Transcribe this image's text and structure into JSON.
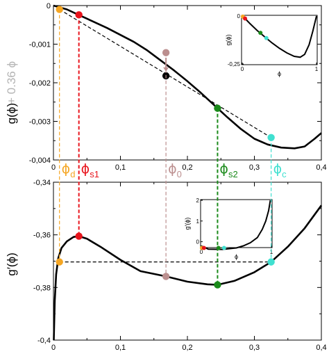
{
  "chart_data": [
    {
      "id": "top",
      "type": "line",
      "ylabel": "g(ϕ)",
      "ylabel_suffix": "+ 0.36 ϕ",
      "xlim": [
        0,
        0.4
      ],
      "ylim": [
        -0.004,
        0
      ],
      "xticks": [
        0,
        0.1,
        0.2,
        0.3,
        0.4
      ],
      "xtick_labels": [
        "0",
        "0,1",
        "0,2",
        "0,3",
        "0,4"
      ],
      "yticks": [
        0,
        -0.001,
        -0.002,
        -0.003,
        -0.004
      ],
      "ytick_labels": [
        "0",
        "-0,001",
        "-0,002",
        "-0,003",
        "-0,004"
      ],
      "series": [
        {
          "values": [
            [
              0.0,
              0.0
            ],
            [
              0.02,
              -0.0001
            ],
            [
              0.04,
              -0.00026
            ],
            [
              0.06,
              -0.00042
            ],
            [
              0.08,
              -0.00058
            ],
            [
              0.1,
              -0.00076
            ],
            [
              0.12,
              -0.00094
            ],
            [
              0.14,
              -0.00116
            ],
            [
              0.16,
              -0.00142
            ],
            [
              0.18,
              -0.00168
            ],
            [
              0.2,
              -0.00196
            ],
            [
              0.22,
              -0.00226
            ],
            [
              0.24,
              -0.00258
            ],
            [
              0.26,
              -0.0029
            ],
            [
              0.28,
              -0.0032
            ],
            [
              0.3,
              -0.00345
            ],
            [
              0.32,
              -0.0036
            ],
            [
              0.34,
              -0.00368
            ],
            [
              0.36,
              -0.0037
            ],
            [
              0.375,
              -0.00365
            ],
            [
              0.39,
              -0.00345
            ],
            [
              0.4,
              -0.0033
            ]
          ]
        }
      ],
      "lines": [
        {
          "from": [
            0.009,
            -0.0001
          ],
          "to": [
            0.325,
            -0.00342
          ],
          "color": "#000000",
          "style": "dashed"
        }
      ],
      "points": [
        {
          "x": 0.009,
          "y": -0.0001,
          "color": "#f5a623"
        },
        {
          "x": 0.038,
          "y": -0.00024,
          "color": "#e8141c"
        },
        {
          "x": 0.168,
          "y": -0.00122,
          "color": "#bc8f8f"
        },
        {
          "x": 0.168,
          "y": -0.00182,
          "color": "#000000"
        },
        {
          "x": 0.245,
          "y": -0.00266,
          "color": "#1a8a1a"
        },
        {
          "x": 0.325,
          "y": -0.00342,
          "color": "#40e0d0"
        }
      ],
      "arrow": {
        "from": [
          0.168,
          -0.00135
        ],
        "to": [
          0.168,
          -0.00171
        ],
        "color": "#bc8f8f"
      },
      "inset": {
        "type": "line",
        "ylabel": "g(ϕ)",
        "xlabel": "ϕ",
        "xlim": [
          0,
          1
        ],
        "ylim": [
          -0.25,
          0
        ],
        "xticks": [
          0,
          1
        ],
        "xtick_labels": [
          "0",
          "1"
        ],
        "yticks": [
          0,
          -0.25
        ],
        "ytick_labels": [
          "0",
          "-0,25"
        ],
        "values": [
          [
            0.0,
            0.0
          ],
          [
            0.05,
            -0.018
          ],
          [
            0.1,
            -0.038
          ],
          [
            0.2,
            -0.075
          ],
          [
            0.3,
            -0.108
          ],
          [
            0.4,
            -0.14
          ],
          [
            0.5,
            -0.168
          ],
          [
            0.6,
            -0.192
          ],
          [
            0.7,
            -0.21
          ],
          [
            0.78,
            -0.215
          ],
          [
            0.84,
            -0.2
          ],
          [
            0.9,
            -0.15
          ],
          [
            0.95,
            -0.08
          ],
          [
            1.0,
            0.0
          ]
        ],
        "points": [
          {
            "x": 0.009,
            "y": -0.003,
            "color": "#f5a623"
          },
          {
            "x": 0.038,
            "y": -0.013,
            "color": "#e8141c"
          },
          {
            "x": 0.245,
            "y": -0.088,
            "color": "#1a8a1a"
          },
          {
            "x": 0.325,
            "y": -0.115,
            "color": "#40e0d0"
          }
        ]
      }
    },
    {
      "id": "bottom",
      "type": "line",
      "ylabel": "g′(ϕ)",
      "xlim": [
        0,
        0.4
      ],
      "ylim": [
        -0.4,
        -0.34
      ],
      "xticks": [
        0,
        0.1,
        0.2,
        0.3,
        0.4
      ],
      "xtick_labels": [
        "0",
        "0,1",
        "0,2",
        "0,3",
        "0,4"
      ],
      "yticks": [
        -0.34,
        -0.36,
        -0.38,
        -0.4
      ],
      "ytick_labels": [
        "-0,34",
        "-0,36",
        "-0,38",
        "-0,4"
      ],
      "series": [
        {
          "values": [
            [
              0.0005,
              -0.4
            ],
            [
              0.002,
              -0.385
            ],
            [
              0.004,
              -0.375
            ],
            [
              0.007,
              -0.369
            ],
            [
              0.012,
              -0.365
            ],
            [
              0.02,
              -0.3625
            ],
            [
              0.03,
              -0.3608
            ],
            [
              0.038,
              -0.3605
            ],
            [
              0.05,
              -0.3615
            ],
            [
              0.07,
              -0.3645
            ],
            [
              0.1,
              -0.3695
            ],
            [
              0.13,
              -0.3738
            ],
            [
              0.168,
              -0.3758
            ],
            [
              0.2,
              -0.3778
            ],
            [
              0.23,
              -0.3788
            ],
            [
              0.245,
              -0.379
            ],
            [
              0.27,
              -0.3775
            ],
            [
              0.3,
              -0.3742
            ],
            [
              0.325,
              -0.3703
            ],
            [
              0.35,
              -0.3645
            ],
            [
              0.375,
              -0.3575
            ],
            [
              0.4,
              -0.3488
            ]
          ]
        }
      ],
      "lines": [
        {
          "from": [
            0.009,
            -0.3703
          ],
          "to": [
            0.325,
            -0.3703
          ],
          "color": "#000000",
          "style": "dashed"
        }
      ],
      "points": [
        {
          "x": 0.009,
          "y": -0.3703,
          "color": "#f5a623"
        },
        {
          "x": 0.038,
          "y": -0.3605,
          "color": "#e8141c"
        },
        {
          "x": 0.168,
          "y": -0.3758,
          "color": "#bc8f8f"
        },
        {
          "x": 0.245,
          "y": -0.379,
          "color": "#1a8a1a"
        },
        {
          "x": 0.325,
          "y": -0.3703,
          "color": "#40e0d0"
        }
      ],
      "inset": {
        "type": "line",
        "ylabel": "g′(ϕ)",
        "xlabel": "ϕ",
        "xlim": [
          0,
          1
        ],
        "ylim": [
          -0.25,
          2
        ],
        "xticks": [
          0,
          1
        ],
        "xtick_labels": [
          "0",
          "1"
        ],
        "yticks": [
          0,
          1,
          2
        ],
        "ytick_labels": [
          "0",
          "1",
          "2"
        ],
        "values": [
          [
            0.0,
            -0.2
          ],
          [
            0.1,
            -0.36
          ],
          [
            0.3,
            -0.37
          ],
          [
            0.5,
            -0.3
          ],
          [
            0.6,
            -0.2
          ],
          [
            0.7,
            -0.05
          ],
          [
            0.8,
            0.2
          ],
          [
            0.87,
            0.6
          ],
          [
            0.92,
            1.0
          ],
          [
            0.96,
            1.5
          ],
          [
            0.985,
            2.0
          ]
        ],
        "points": [
          {
            "x": 0.009,
            "y": -0.3,
            "color": "#f5a623"
          },
          {
            "x": 0.038,
            "y": -0.3,
            "color": "#e8141c"
          },
          {
            "x": 0.245,
            "y": -0.3,
            "color": "#1a8a1a"
          },
          {
            "x": 0.325,
            "y": -0.3,
            "color": "#40e0d0"
          }
        ]
      }
    }
  ],
  "phi_labels": [
    {
      "key": "d",
      "main": "ϕ",
      "sub": "d",
      "x": 0.009,
      "color": "#f5a623"
    },
    {
      "key": "s1",
      "main": "ϕ",
      "sub": "s1",
      "x": 0.038,
      "color": "#e8141c"
    },
    {
      "key": "0",
      "main": "ϕ",
      "sub": "0",
      "x": 0.168,
      "color": "#bc8f8f"
    },
    {
      "key": "s2",
      "main": "ϕ",
      "sub": "s2",
      "x": 0.245,
      "color": "#1a8a1a"
    },
    {
      "key": "c",
      "main": "ϕ",
      "sub": "c",
      "x": 0.325,
      "color": "#40e0d0"
    }
  ],
  "colors": {
    "orange": "#f5a623",
    "red": "#e8141c",
    "rosybrown": "#bc8f8f",
    "green": "#1a8a1a",
    "turquoise": "#40e0d0",
    "gray_label": "#b4b4b4"
  }
}
